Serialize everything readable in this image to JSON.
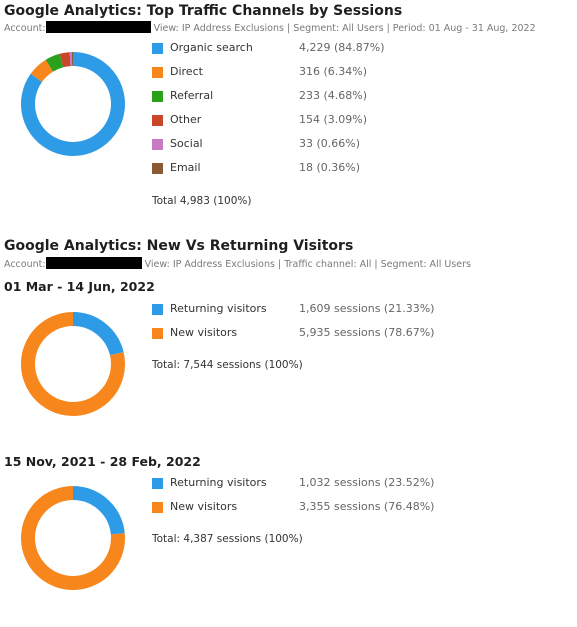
{
  "chart_data": [
    {
      "type": "pie",
      "title": "Google Analytics: Top Traffic Channels by Sessions",
      "subtitle": {
        "account_label": "Account:",
        "filters": "View: IP Address Exclusions | Segment: All Users | Period: 01 Aug - 31 Aug, 2022"
      },
      "series": [
        {
          "name": "Organic search",
          "value": 4229,
          "label": "4,229 (84.87%)",
          "color": "#2e9be6"
        },
        {
          "name": "Direct",
          "value": 316,
          "label": "316 (6.34%)",
          "color": "#f7861c"
        },
        {
          "name": "Referral",
          "value": 233,
          "label": "233 (4.68%)",
          "color": "#2aa11a"
        },
        {
          "name": "Other",
          "value": 154,
          "label": "154 (3.09%)",
          "color": "#c8472a"
        },
        {
          "name": "Social",
          "value": 33,
          "label": "33 (0.66%)",
          "color": "#c97bc2"
        },
        {
          "name": "Email",
          "value": 18,
          "label": "18 (0.36%)",
          "color": "#8a5a35"
        }
      ],
      "total": "Total 4,983 (100%)"
    },
    {
      "type": "pie",
      "title": "Google Analytics: New Vs Returning Visitors",
      "subtitle": {
        "account_label": "Account:",
        "filters": "View: IP Address Exclusions | Traffic channel: All | Segment: All Users"
      },
      "period": "01 Mar - 14 Jun, 2022",
      "series": [
        {
          "name": "Returning visitors",
          "value": 1609,
          "label": "1,609 sessions (21.33%)",
          "color": "#2e9be6"
        },
        {
          "name": "New visitors",
          "value": 5935,
          "label": "5,935 sessions (78.67%)",
          "color": "#f7861c"
        }
      ],
      "total": "Total: 7,544 sessions (100%)"
    },
    {
      "type": "pie",
      "period": "15 Nov, 2021 - 28 Feb, 2022",
      "series": [
        {
          "name": "Returning visitors",
          "value": 1032,
          "label": "1,032 sessions (23.52%)",
          "color": "#2e9be6"
        },
        {
          "name": "New visitors",
          "value": 3355,
          "label": "3,355 sessions (76.48%)",
          "color": "#f7861c"
        }
      ],
      "total": "Total: 4,387 sessions (100%)"
    }
  ]
}
